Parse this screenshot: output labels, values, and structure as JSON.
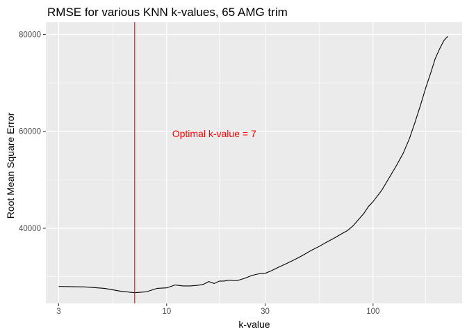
{
  "chart_data": {
    "type": "line",
    "title": "RMSE for various KNN k-values, 65 AMG trim",
    "xlabel": "k-value",
    "ylabel": "Root Mean Square Error",
    "x_scale": "log10",
    "xlim": [
      2.6,
      270
    ],
    "ylim": [
      24500,
      82500
    ],
    "x_ticks": [
      3,
      10,
      30,
      100
    ],
    "x_tick_labels": [
      "3",
      "10",
      "30",
      "100"
    ],
    "x_minor_ticks": [
      5.5,
      18,
      55,
      180
    ],
    "y_ticks": [
      40000,
      60000,
      80000
    ],
    "y_tick_labels": [
      "40000",
      "60000",
      "80000"
    ],
    "y_minor_ticks": [
      30000,
      50000,
      70000
    ],
    "grid": true,
    "panel_background": "#ebebeb",
    "line_color": "#000000",
    "series": [
      {
        "x": [
          3,
          4,
          5,
          6,
          7,
          8,
          9,
          10,
          11,
          12,
          13,
          14,
          15,
          16,
          17,
          18,
          19,
          20,
          21,
          22,
          24,
          26,
          28,
          30,
          32,
          35,
          38,
          42,
          46,
          50,
          55,
          60,
          65,
          70,
          75,
          80,
          85,
          90,
          95,
          100,
          110,
          120,
          130,
          140,
          150,
          160,
          170,
          180,
          190,
          200,
          210,
          220,
          230
        ],
        "y": [
          28000,
          27900,
          27600,
          27000,
          26700,
          26900,
          27600,
          27700,
          28300,
          28100,
          28100,
          28200,
          28400,
          29000,
          28600,
          29100,
          29100,
          29300,
          29200,
          29200,
          29700,
          30300,
          30600,
          30700,
          31200,
          32000,
          32700,
          33600,
          34500,
          35400,
          36300,
          37200,
          38000,
          38800,
          39500,
          40500,
          41800,
          43000,
          44500,
          45500,
          47800,
          50500,
          53000,
          55500,
          58500,
          62000,
          65500,
          69000,
          72000,
          75000,
          77000,
          78700,
          79600
        ]
      }
    ],
    "vline": {
      "x": 7,
      "color": "#ff0000"
    },
    "annotation": {
      "text": "Optimal k-value =  7",
      "x": 17,
      "y": 59500,
      "color": "#ff0000"
    }
  }
}
